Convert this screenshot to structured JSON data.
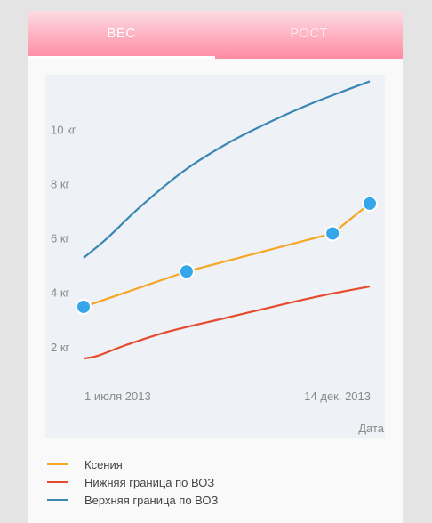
{
  "tabs": [
    {
      "label": "ВЕС",
      "active": true
    },
    {
      "label": "РОСТ",
      "active": false
    }
  ],
  "colors": {
    "child": "#f5a623",
    "lower": "#e54b2c",
    "upper": "#3a87b4",
    "point": "#36a6ec"
  },
  "chart_data": {
    "type": "line",
    "y_ticks": [
      "2 кг",
      "4 кг",
      "6 кг",
      "8 кг",
      "10 кг"
    ],
    "x_ticks": [
      "1 июля 2013",
      "14 дек. 2013"
    ],
    "xlabel": "Дата",
    "ylim": [
      1,
      12
    ],
    "series": [
      {
        "name": "Ксения",
        "color": "#f5a623",
        "markers": true,
        "points": [
          [
            0,
            3.5
          ],
          [
            0.36,
            4.8
          ],
          [
            0.87,
            6.2
          ],
          [
            1,
            7.3
          ]
        ]
      },
      {
        "name": "Нижняя граница по ВОЗ",
        "color": "#e54b2c",
        "markers": false,
        "points": [
          [
            0,
            1.6
          ],
          [
            0.05,
            1.7
          ],
          [
            0.15,
            2.1
          ],
          [
            0.3,
            2.6
          ],
          [
            0.5,
            3.1
          ],
          [
            0.7,
            3.6
          ],
          [
            0.85,
            3.95
          ],
          [
            1,
            4.25
          ]
        ]
      },
      {
        "name": "Верхняя граница по ВОЗ",
        "color": "#3a87b4",
        "markers": false,
        "points": [
          [
            0,
            5.3
          ],
          [
            0.08,
            6.0
          ],
          [
            0.2,
            7.2
          ],
          [
            0.35,
            8.5
          ],
          [
            0.5,
            9.5
          ],
          [
            0.65,
            10.3
          ],
          [
            0.8,
            11.0
          ],
          [
            1,
            11.8
          ]
        ]
      }
    ]
  }
}
